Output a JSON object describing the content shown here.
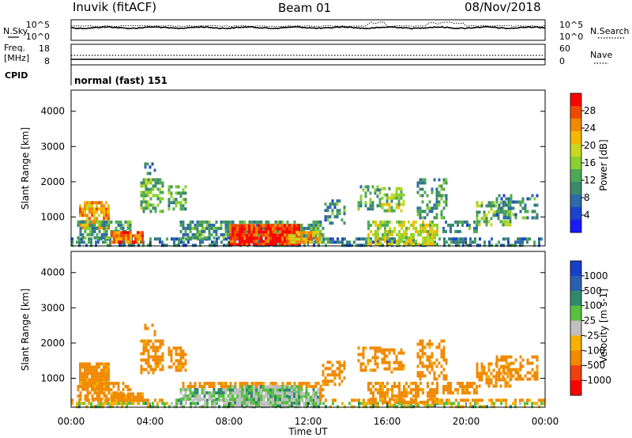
{
  "header": {
    "station": "Inuvik (fitACF)",
    "beam": "Beam 01",
    "date": "08/Nov/2018"
  },
  "left_labels": {
    "nsky": "N.Sky",
    "freq_line1": "Freq.",
    "freq_line2": "[MHz]",
    "cpid": "CPID"
  },
  "right_labels": {
    "nsearch": "N.Search",
    "nave": "Nave"
  },
  "noise_panel": {
    "left_ticks": [
      "10^5",
      "10^0"
    ],
    "right_ticks": [
      "10^5",
      "10^0"
    ]
  },
  "freq_panel": {
    "left_ticks": [
      "18",
      "8"
    ],
    "right_ticks": [
      "60",
      "0"
    ]
  },
  "cpid_text": "normal (fast) 151",
  "xaxis": {
    "title": "Time UT",
    "ticks": [
      "00:00",
      "04:00",
      "08:00",
      "12:00",
      "16:00",
      "20:00",
      "00:00"
    ],
    "range_hours": [
      0,
      24
    ]
  },
  "chart_data": [
    {
      "type": "heatmap",
      "name": "power",
      "ylabel": "Slant Range [km]",
      "yticks": [
        1000,
        2000,
        3000,
        4000
      ],
      "ylim": [
        180,
        4600
      ],
      "colorbar": {
        "label": "Power [dB]",
        "ticks": [
          "4",
          "8",
          "12",
          "16",
          "20",
          "24",
          "28"
        ],
        "range": [
          0,
          32
        ],
        "colors": [
          "#1a1aff",
          "#1a44cc",
          "#2e6aa8",
          "#3d8a6a",
          "#4caa55",
          "#8cd030",
          "#c8d820",
          "#f5b800",
          "#f08a00",
          "#f04a00",
          "#ff0000"
        ]
      }
    },
    {
      "type": "heatmap",
      "name": "velocity",
      "ylabel": "Slant Range [km]",
      "yticks": [
        1000,
        2000,
        3000,
        4000
      ],
      "ylim": [
        180,
        4600
      ],
      "colorbar": {
        "label": "Velocity [m s-1]",
        "ticks": [
          "1000",
          "500",
          "100",
          "25",
          "-25",
          "-100",
          "-500",
          "-1000"
        ],
        "range": [
          -1200,
          1200
        ],
        "colors": [
          "#1840c8",
          "#2a60b0",
          "#2f8a6a",
          "#58c040",
          "#c0c0c0",
          "#f5b000",
          "#f08a00",
          "#f04010",
          "#ff0000"
        ]
      }
    }
  ]
}
